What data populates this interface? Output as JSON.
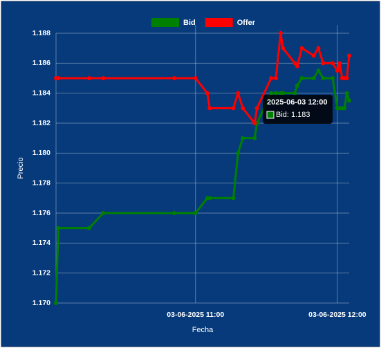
{
  "chart_data": {
    "type": "line",
    "x_label": "Fecha",
    "y_label": "Precio",
    "x": [
      "2025-06-03T10:01",
      "2025-06-03T10:02",
      "2025-06-03T10:15",
      "2025-06-03T10:21",
      "2025-06-03T10:51",
      "2025-06-03T11:00",
      "2025-06-03T11:05",
      "2025-06-03T11:06",
      "2025-06-03T11:16",
      "2025-06-03T11:18",
      "2025-06-03T11:20",
      "2025-06-03T11:25",
      "2025-06-03T11:26",
      "2025-06-03T11:32",
      "2025-06-03T11:34",
      "2025-06-03T11:36",
      "2025-06-03T11:37",
      "2025-06-03T11:42",
      "2025-06-03T11:43",
      "2025-06-03T11:45",
      "2025-06-03T11:50",
      "2025-06-03T11:52",
      "2025-06-03T11:54",
      "2025-06-03T11:58",
      "2025-06-03T12:00",
      "2025-06-03T12:01",
      "2025-06-03T12:02",
      "2025-06-03T12:03",
      "2025-06-03T12:04",
      "2025-06-03T12:05"
    ],
    "series": [
      {
        "name": "Bid",
        "color": "#008000",
        "values": [
          1.17,
          1.175,
          1.175,
          1.176,
          1.176,
          1.176,
          1.177,
          1.177,
          1.177,
          1.18,
          1.181,
          1.181,
          1.182,
          1.184,
          1.184,
          1.184,
          1.184,
          1.184,
          1.1845,
          1.185,
          1.185,
          1.1855,
          1.185,
          1.185,
          1.183,
          1.183,
          1.183,
          1.183,
          1.184,
          1.1835
        ]
      },
      {
        "name": "Offer",
        "color": "#ff0000",
        "values": [
          1.185,
          1.185,
          1.185,
          1.185,
          1.185,
          1.185,
          1.184,
          1.183,
          1.183,
          1.184,
          1.183,
          1.182,
          1.183,
          1.185,
          1.185,
          1.188,
          1.187,
          1.186,
          1.1858,
          1.187,
          1.1865,
          1.187,
          1.186,
          1.186,
          1.1855,
          1.186,
          1.185,
          1.185,
          1.185,
          1.1865
        ]
      }
    ],
    "xlim": [
      "2025-06-03T10:01",
      "2025-06-03T12:05"
    ],
    "xticks": [
      {
        "value": "2025-06-03T11:00",
        "label": "03-06-2025 11:00"
      },
      {
        "value": "2025-06-03T12:00",
        "label": "03-06-2025 12:00"
      }
    ],
    "ylim": [
      1.17,
      1.188
    ],
    "yticks": [
      {
        "value": 1.17,
        "label": "1.170"
      },
      1.172,
      1.174,
      1.176,
      1.178,
      {
        "value": 1.18,
        "label": "1.180"
      },
      1.182,
      1.184,
      1.186,
      1.188
    ],
    "grid": true,
    "legend": "top",
    "tooltip": {
      "title": "2025-06-03 12:00",
      "text": "Bid: 1.183"
    }
  }
}
